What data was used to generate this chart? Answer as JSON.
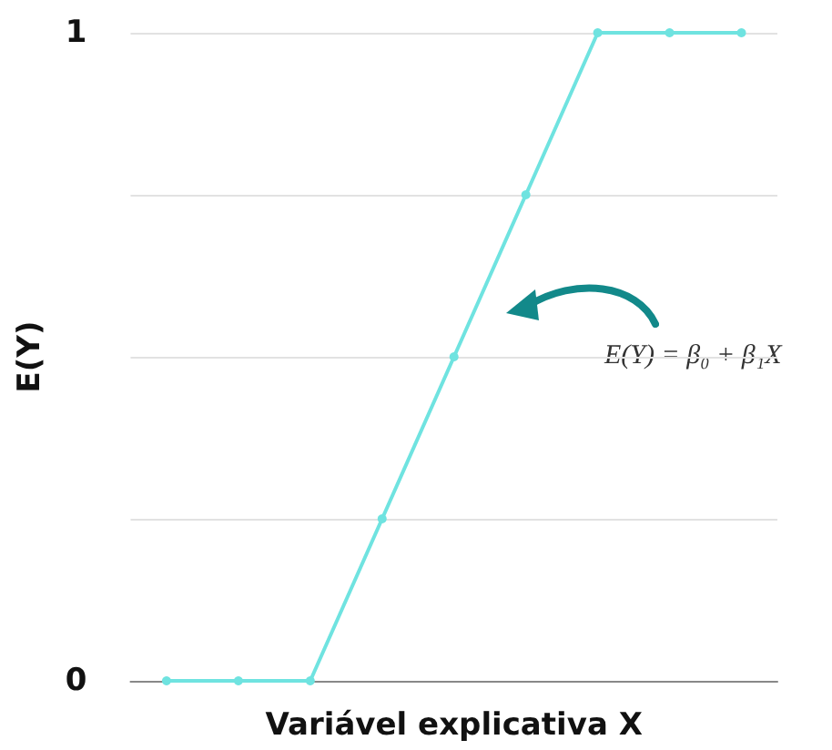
{
  "chart_data": {
    "type": "line",
    "xlabel": "Variável explicativa X",
    "ylabel": "E(Y)",
    "categories": [
      null,
      null,
      null,
      null,
      null,
      null,
      null,
      null,
      null
    ],
    "series": [
      {
        "color": "#6fe3e0",
        "values": [
          0,
          0,
          0,
          0.25,
          0.5,
          0.75,
          1,
          1,
          1
        ]
      }
    ],
    "ylim": [
      0,
      1
    ],
    "yticks": [
      0,
      {
        "value": 0.25,
        "label": null
      },
      {
        "value": 0.5,
        "label": null
      },
      {
        "value": 0.75,
        "label": null
      },
      1
    ],
    "grid": "y",
    "marker": "circle",
    "line_style": "solid",
    "annotations": [
      "E(Y) = β₀ + β₁X"
    ]
  }
}
